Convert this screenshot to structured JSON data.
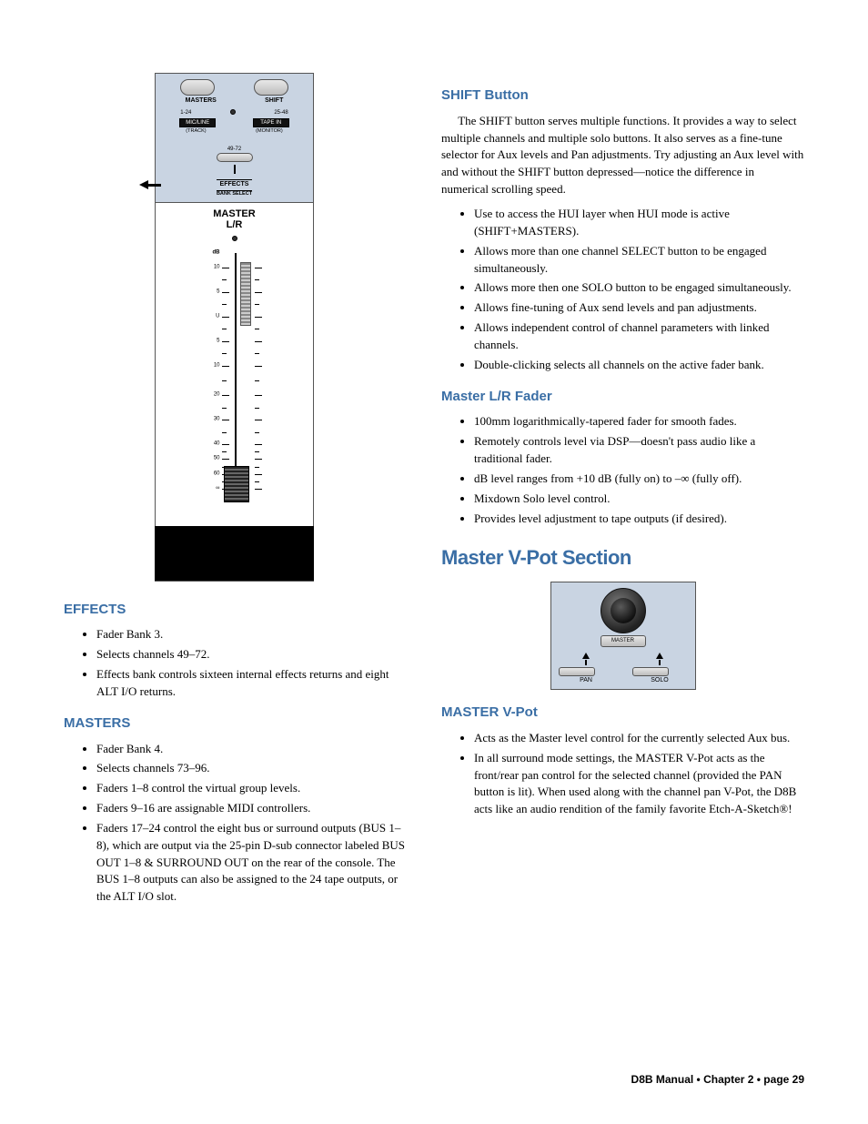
{
  "colors": {
    "accent": "#3a6ea5",
    "panel_bg": "#c9d4e2",
    "text": "#000000",
    "page_bg": "#ffffff"
  },
  "diagram": {
    "top_labels": {
      "masters": "MASTERS",
      "shift": "SHIFT"
    },
    "bank_labels": {
      "b1_24": "1-24",
      "b25_48": "25-48"
    },
    "mic_line": {
      "main": "MIC/LINE",
      "sub": "(TRACK)"
    },
    "tape_in": {
      "main": "TAPE IN",
      "sub": "(MONITOR)"
    },
    "b49_72": "49-72",
    "effects": "EFFECTS",
    "bank_select": "BANK SELECT",
    "master_lr": "MASTER\nL/R",
    "scale_title": "dB",
    "scale": [
      "10",
      "5",
      "U",
      "5",
      "10",
      "20",
      "30",
      "40",
      "50",
      "60",
      "∞"
    ],
    "scale_positions_pct": [
      6,
      16,
      26,
      36,
      46,
      58,
      68,
      78,
      84,
      90,
      96
    ]
  },
  "left": {
    "effects": {
      "title": "EFFECTS",
      "items": [
        "Fader Bank 3.",
        "Selects channels 49–72.",
        "Effects bank controls sixteen internal effects returns and eight ALT I/O returns."
      ]
    },
    "masters": {
      "title": "MASTERS",
      "items": [
        "Fader Bank 4.",
        "Selects channels 73–96.",
        "Faders 1–8 control the virtual group levels.",
        "Faders 9–16 are assignable MIDI controllers.",
        "Faders 17–24 control the eight bus or surround outputs (BUS 1–8), which are output via the 25-pin D-sub connector labeled BUS OUT 1–8 & SURROUND OUT on the rear of the console. The BUS 1–8 outputs can also be assigned to the 24 tape outputs, or the ALT I/O slot."
      ]
    }
  },
  "right": {
    "shift": {
      "title": "SHIFT Button",
      "para": "The SHIFT button serves multiple functions. It provides a way to select multiple channels and multiple solo buttons. It also serves as a fine-tune selector for Aux levels and Pan adjustments. Try adjusting an Aux level with and without the SHIFT button depressed—notice the difference in numerical scrolling speed.",
      "items": [
        "Use to access the HUI layer when HUI mode is active (SHIFT+MASTERS).",
        "Allows more than one channel SELECT button to be engaged simultaneously.",
        "Allows more then one SOLO button to be engaged simultaneously.",
        "Allows fine-tuning of Aux send levels and pan adjustments.",
        "Allows independent control of channel parameters with linked channels.",
        "Double-clicking selects all channels on the active fader bank."
      ]
    },
    "master_lr": {
      "title": "Master L/R Fader",
      "items": [
        "100mm logarithmically-tapered fader for smooth fades.",
        "Remotely controls level via DSP—doesn't pass audio like a traditional fader.",
        "dB level ranges from +10 dB (fully on) to –∞ (fully off).",
        "Mixdown Solo level control.",
        "Provides level adjustment to tape outputs (if desired)."
      ]
    },
    "vpot_section": {
      "title": "Master V-Pot Section",
      "diagram": {
        "master": "MASTER",
        "pan": "PAN",
        "solo": "SOLO"
      },
      "master_vpot": {
        "title": "MASTER V-Pot",
        "items": [
          "Acts as the Master level control for the currently selected Aux bus.",
          "In all surround mode settings, the MASTER V-Pot acts as the front/rear pan control for the selected channel (provided the PAN button is lit). When used along with the channel pan V-Pot, the D8B acts like an audio rendition of the family favorite Etch-A-Sketch®!"
        ]
      }
    }
  },
  "footer": "D8B Manual • Chapter 2 • page 29"
}
